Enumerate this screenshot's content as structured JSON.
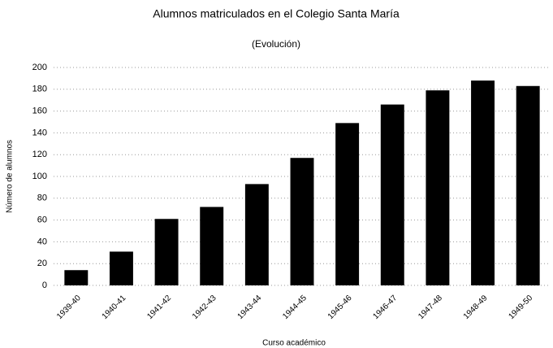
{
  "chart_data": {
    "type": "bar",
    "title": "Alumnos matriculados en el Colegio Santa María",
    "subtitle": "(Evolución)",
    "x_label": "Curso académico",
    "y_label": "Número de alumnos",
    "categories": [
      "1939-40",
      "1940-41",
      "1941-42",
      "1942-43",
      "1943-44",
      "1944-45",
      "1945-46",
      "1946-47",
      "1947-48",
      "1948-49",
      "1949-50"
    ],
    "values": [
      14,
      31,
      61,
      72,
      93,
      117,
      149,
      166,
      179,
      188,
      183
    ],
    "color": "#000000",
    "ylim": [
      0,
      200
    ],
    "yticks": [
      0,
      20,
      40,
      60,
      80,
      100,
      120,
      140,
      160,
      180,
      200
    ],
    "grid": true
  }
}
